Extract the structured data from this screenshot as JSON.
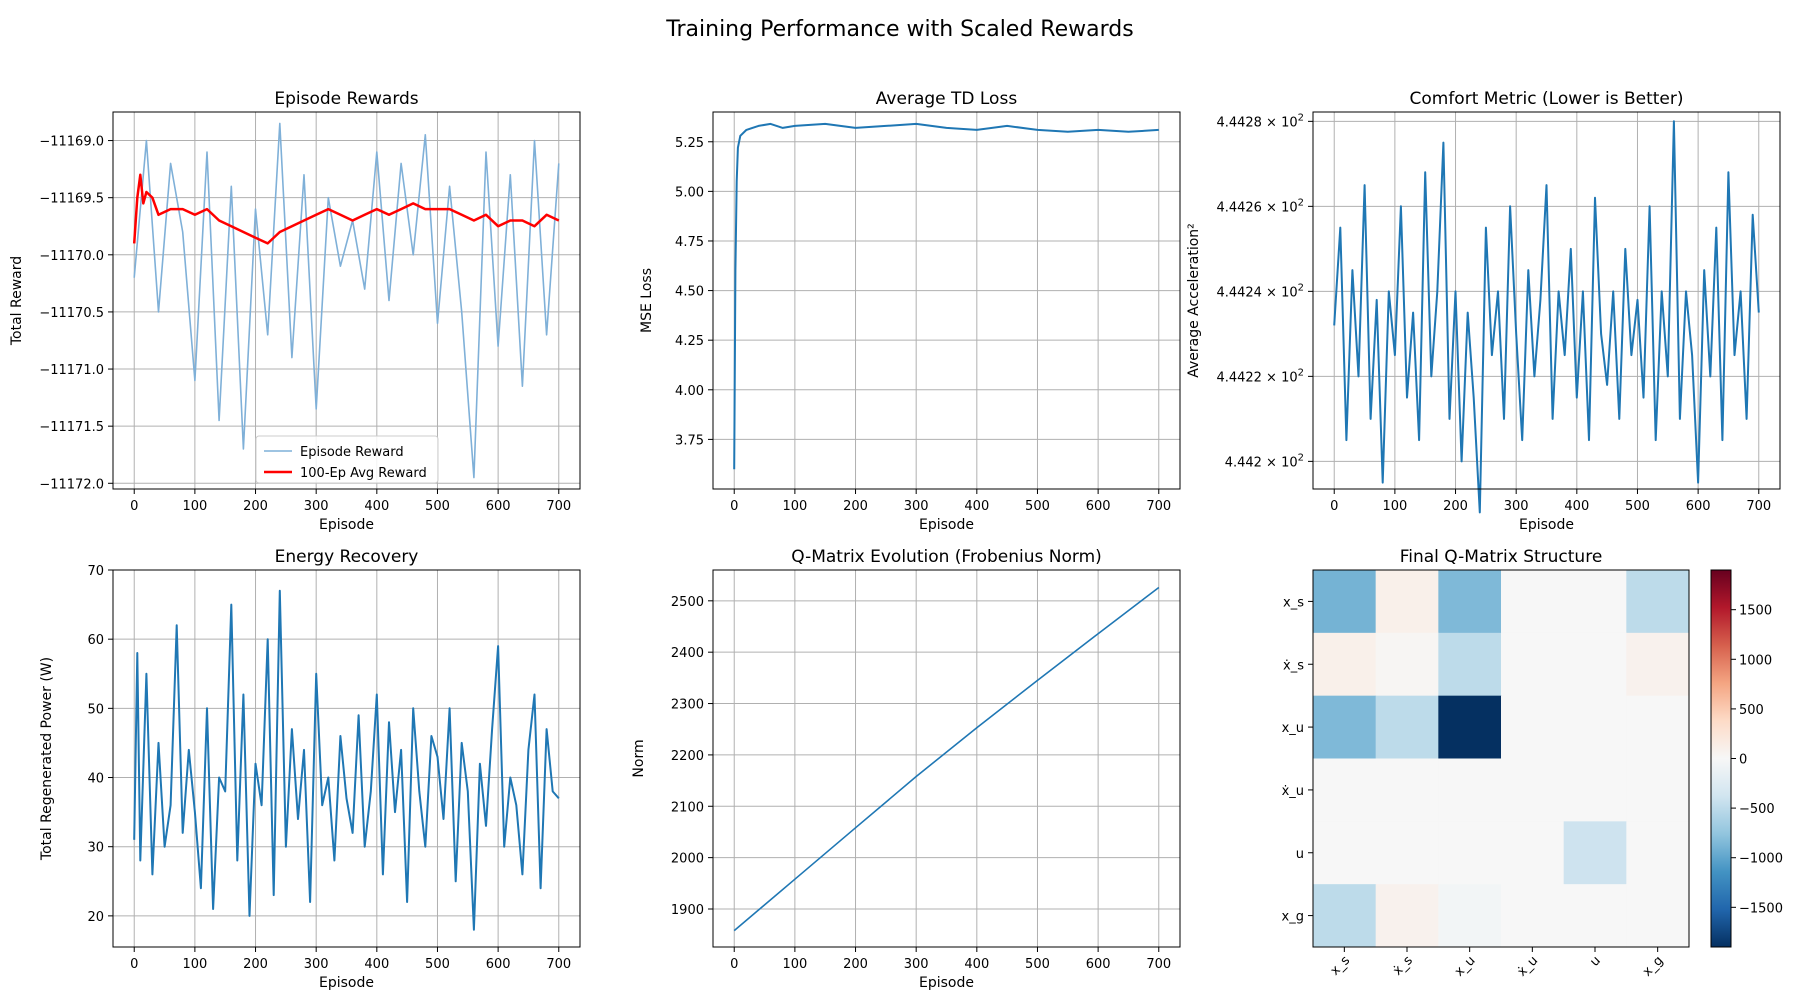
{
  "figure_title": "Training Performance with Scaled Rewards",
  "colors": {
    "line": "#1f77b4",
    "reward_line": "#7fb0d8",
    "avg_line": "#ff0000",
    "grid": "#b0b0b0"
  },
  "chart_data": [
    {
      "type": "line",
      "title": "Episode Rewards",
      "xlabel": "Episode",
      "ylabel": "Total Reward",
      "xlim": [
        -35,
        735
      ],
      "ylim": [
        -11172.05,
        -11168.75
      ],
      "xticks": [
        0,
        100,
        200,
        300,
        400,
        500,
        600,
        700
      ],
      "yticks": [
        -11172.0,
        -11171.5,
        -11171.0,
        -11170.5,
        -11170.0,
        -11169.5,
        -11169.0
      ],
      "ytick_labels": [
        "−11172.0",
        "−11171.5",
        "−11171.0",
        "−11170.5",
        "−11170.0",
        "−11169.5",
        "−11169.0"
      ],
      "grid": true,
      "legend": "lower-center",
      "series": [
        {
          "name": "Episode Reward",
          "x": [
            0,
            20,
            40,
            60,
            80,
            100,
            120,
            140,
            160,
            180,
            200,
            220,
            240,
            260,
            280,
            300,
            320,
            340,
            360,
            380,
            400,
            420,
            440,
            460,
            480,
            500,
            520,
            540,
            560,
            580,
            600,
            620,
            640,
            660,
            680,
            700
          ],
          "y": [
            -11170.2,
            -11169.0,
            -11170.5,
            -11169.2,
            -11169.8,
            -11171.1,
            -11169.1,
            -11171.45,
            -11169.4,
            -11171.7,
            -11169.6,
            -11170.7,
            -11168.85,
            -11170.9,
            -11169.3,
            -11171.35,
            -11169.5,
            -11170.1,
            -11169.7,
            -11170.3,
            -11169.1,
            -11170.4,
            -11169.2,
            -11170.0,
            -11168.95,
            -11170.6,
            -11169.4,
            -11170.5,
            -11171.95,
            -11169.1,
            -11170.8,
            -11169.3,
            -11171.15,
            -11169.0,
            -11170.7,
            -11169.2
          ]
        },
        {
          "name": "100-Ep Avg Reward",
          "x": [
            0,
            5,
            10,
            15,
            20,
            30,
            40,
            60,
            80,
            100,
            120,
            140,
            160,
            180,
            200,
            220,
            240,
            260,
            280,
            300,
            320,
            340,
            360,
            380,
            400,
            420,
            440,
            460,
            480,
            500,
            520,
            540,
            560,
            580,
            600,
            620,
            640,
            660,
            680,
            700
          ],
          "y": [
            -11169.9,
            -11169.5,
            -11169.3,
            -11169.55,
            -11169.45,
            -11169.5,
            -11169.65,
            -11169.6,
            -11169.6,
            -11169.65,
            -11169.6,
            -11169.7,
            -11169.75,
            -11169.8,
            -11169.85,
            -11169.9,
            -11169.8,
            -11169.75,
            -11169.7,
            -11169.65,
            -11169.6,
            -11169.65,
            -11169.7,
            -11169.65,
            -11169.6,
            -11169.65,
            -11169.6,
            -11169.55,
            -11169.6,
            -11169.6,
            -11169.6,
            -11169.65,
            -11169.7,
            -11169.65,
            -11169.75,
            -11169.7,
            -11169.7,
            -11169.75,
            -11169.65,
            -11169.7
          ]
        }
      ]
    },
    {
      "type": "line",
      "title": "Average TD Loss",
      "xlabel": "Episode",
      "ylabel": "MSE Loss",
      "xlim": [
        -35,
        735
      ],
      "ylim": [
        3.5,
        5.4
      ],
      "xticks": [
        0,
        100,
        200,
        300,
        400,
        500,
        600,
        700
      ],
      "yticks": [
        3.75,
        4.0,
        4.25,
        4.5,
        4.75,
        5.0,
        5.25
      ],
      "ytick_labels": [
        "3.75",
        "4.00",
        "4.25",
        "4.50",
        "4.75",
        "5.00",
        "5.25"
      ],
      "grid": true,
      "series": [
        {
          "x": [
            0,
            2,
            4,
            6,
            10,
            20,
            40,
            60,
            80,
            100,
            150,
            200,
            250,
            300,
            350,
            400,
            450,
            500,
            550,
            600,
            650,
            700
          ],
          "y": [
            3.6,
            4.6,
            5.05,
            5.22,
            5.28,
            5.31,
            5.33,
            5.34,
            5.32,
            5.33,
            5.34,
            5.32,
            5.33,
            5.34,
            5.32,
            5.31,
            5.33,
            5.31,
            5.3,
            5.31,
            5.3,
            5.31
          ]
        }
      ]
    },
    {
      "type": "line",
      "title": "Comfort Metric (Lower is Better)",
      "xlabel": "Episode",
      "ylabel": "Average Acceleration²",
      "yscale": "log",
      "xlim": [
        -35,
        735
      ],
      "ylim": [
        444.1935,
        444.2822
      ],
      "xticks": [
        0,
        100,
        200,
        300,
        400,
        500,
        600,
        700
      ],
      "yticks": [
        444.2,
        444.22,
        444.24,
        444.26,
        444.28
      ],
      "ytick_labels": [
        "4.442",
        "4.4422",
        "4.4424",
        "4.4426",
        "4.4428"
      ],
      "ytick_exponent": "2",
      "grid": true,
      "series": [
        {
          "x": [
            0,
            10,
            20,
            30,
            40,
            50,
            60,
            70,
            80,
            90,
            100,
            110,
            120,
            130,
            140,
            150,
            160,
            170,
            180,
            190,
            200,
            210,
            220,
            230,
            240,
            250,
            260,
            270,
            280,
            290,
            300,
            310,
            320,
            330,
            340,
            350,
            360,
            370,
            380,
            390,
            400,
            410,
            420,
            430,
            440,
            450,
            460,
            470,
            480,
            490,
            500,
            510,
            520,
            530,
            540,
            550,
            560,
            570,
            580,
            590,
            600,
            610,
            620,
            630,
            640,
            650,
            660,
            670,
            680,
            690,
            700
          ],
          "y": [
            444.232,
            444.255,
            444.205,
            444.245,
            444.22,
            444.265,
            444.21,
            444.238,
            444.195,
            444.24,
            444.225,
            444.26,
            444.215,
            444.235,
            444.205,
            444.268,
            444.22,
            444.24,
            444.275,
            444.21,
            444.24,
            444.2,
            444.235,
            444.215,
            444.188,
            444.255,
            444.225,
            444.24,
            444.21,
            444.26,
            444.23,
            444.205,
            444.245,
            444.22,
            444.238,
            444.265,
            444.21,
            444.24,
            444.225,
            444.25,
            444.215,
            444.24,
            444.205,
            444.262,
            444.23,
            444.218,
            444.24,
            444.21,
            444.25,
            444.225,
            444.238,
            444.215,
            444.26,
            444.205,
            444.24,
            444.22,
            444.28,
            444.21,
            444.24,
            444.225,
            444.195,
            444.245,
            444.22,
            444.255,
            444.205,
            444.268,
            444.225,
            444.24,
            444.21,
            444.258,
            444.235
          ]
        }
      ]
    },
    {
      "type": "line",
      "title": "Energy Recovery",
      "xlabel": "Episode",
      "ylabel": "Total Regenerated Power (W)",
      "xlim": [
        -35,
        735
      ],
      "ylim": [
        15.5,
        70
      ],
      "xticks": [
        0,
        100,
        200,
        300,
        400,
        500,
        600,
        700
      ],
      "yticks": [
        20,
        30,
        40,
        50,
        60,
        70
      ],
      "ytick_labels": [
        "20",
        "30",
        "40",
        "50",
        "60",
        "70"
      ],
      "grid": true,
      "series": [
        {
          "x": [
            0,
            5,
            10,
            20,
            30,
            40,
            50,
            60,
            70,
            80,
            90,
            100,
            110,
            120,
            130,
            140,
            150,
            160,
            170,
            180,
            190,
            200,
            210,
            220,
            230,
            240,
            250,
            260,
            270,
            280,
            290,
            300,
            310,
            320,
            330,
            340,
            350,
            360,
            370,
            380,
            390,
            400,
            410,
            420,
            430,
            440,
            450,
            460,
            470,
            480,
            490,
            500,
            510,
            520,
            530,
            540,
            550,
            560,
            570,
            580,
            590,
            600,
            610,
            620,
            630,
            640,
            650,
            660,
            670,
            680,
            690,
            700
          ],
          "y": [
            31,
            58,
            28,
            55,
            26,
            45,
            30,
            36,
            62,
            32,
            44,
            35,
            24,
            50,
            21,
            40,
            38,
            65,
            28,
            52,
            20,
            42,
            36,
            60,
            23,
            67,
            30,
            47,
            34,
            44,
            22,
            55,
            36,
            40,
            28,
            46,
            37,
            32,
            49,
            30,
            38,
            52,
            26,
            48,
            35,
            44,
            22,
            50,
            38,
            30,
            46,
            43,
            34,
            50,
            25,
            45,
            38,
            18,
            42,
            33,
            47,
            59,
            30,
            40,
            36,
            26,
            44,
            52,
            24,
            47,
            38,
            37
          ]
        }
      ]
    },
    {
      "type": "line",
      "title": "Q-Matrix Evolution (Frobenius Norm)",
      "xlabel": "Episode",
      "ylabel": "Norm",
      "xlim": [
        -35,
        735
      ],
      "ylim": [
        1826,
        2560
      ],
      "xticks": [
        0,
        100,
        200,
        300,
        400,
        500,
        600,
        700
      ],
      "yticks": [
        1900,
        2000,
        2100,
        2200,
        2300,
        2400,
        2500
      ],
      "ytick_labels": [
        "1900",
        "2000",
        "2100",
        "2200",
        "2300",
        "2400",
        "2500"
      ],
      "grid": true,
      "series": [
        {
          "x": [
            0,
            100,
            200,
            300,
            400,
            500,
            600,
            700
          ],
          "y": [
            1858,
            1958,
            2058,
            2158,
            2253,
            2345,
            2436,
            2526
          ]
        }
      ]
    },
    {
      "type": "heatmap",
      "title": "Final Q-Matrix Structure",
      "row_labels": [
        "x_s",
        "ẋ_s",
        "x_u",
        "ẋ_u",
        "u",
        "x_g"
      ],
      "col_labels": [
        "x_s",
        "ẋ_s",
        "x_u",
        "ẋ_u",
        "u",
        "x_g"
      ],
      "values": [
        [
          -900,
          100,
          -850,
          0,
          0,
          -500
        ],
        [
          100,
          30,
          -500,
          0,
          0,
          80
        ],
        [
          -850,
          -500,
          -1900,
          0,
          0,
          0
        ],
        [
          0,
          0,
          0,
          0,
          0,
          0
        ],
        [
          0,
          0,
          0,
          0,
          -400,
          0
        ],
        [
          -500,
          80,
          -50,
          0,
          0,
          0
        ]
      ],
      "vmin": -1900,
      "vmax": 1900,
      "colormap": "RdBu_r",
      "colorbar_ticks": [
        1500,
        1000,
        500,
        0,
        -500,
        -1000,
        -1500
      ],
      "colorbar_tick_labels": [
        "1500",
        "1000",
        "500",
        "0",
        "−500",
        "−1000",
        "−1500"
      ]
    }
  ]
}
